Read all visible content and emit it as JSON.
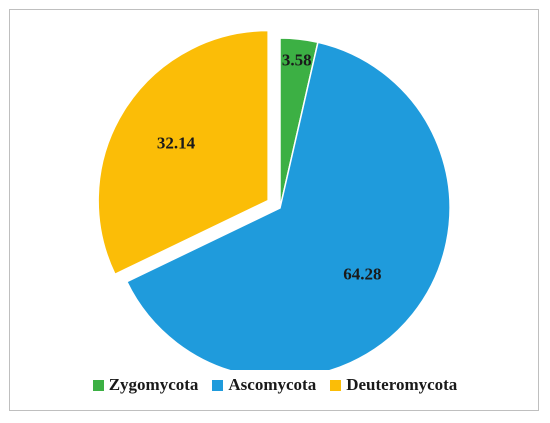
{
  "chart_data": {
    "type": "pie",
    "categories": [
      "Zygomycota",
      "Ascomycota",
      "Deuteromycota"
    ],
    "values": [
      3.58,
      64.28,
      32.14
    ],
    "labels": [
      "3.58",
      "64.28",
      "32.14"
    ],
    "colors": [
      "#3cb044",
      "#1f9bdc",
      "#fbbd07"
    ],
    "exploded": [
      false,
      false,
      true
    ],
    "legend_position": "bottom"
  }
}
